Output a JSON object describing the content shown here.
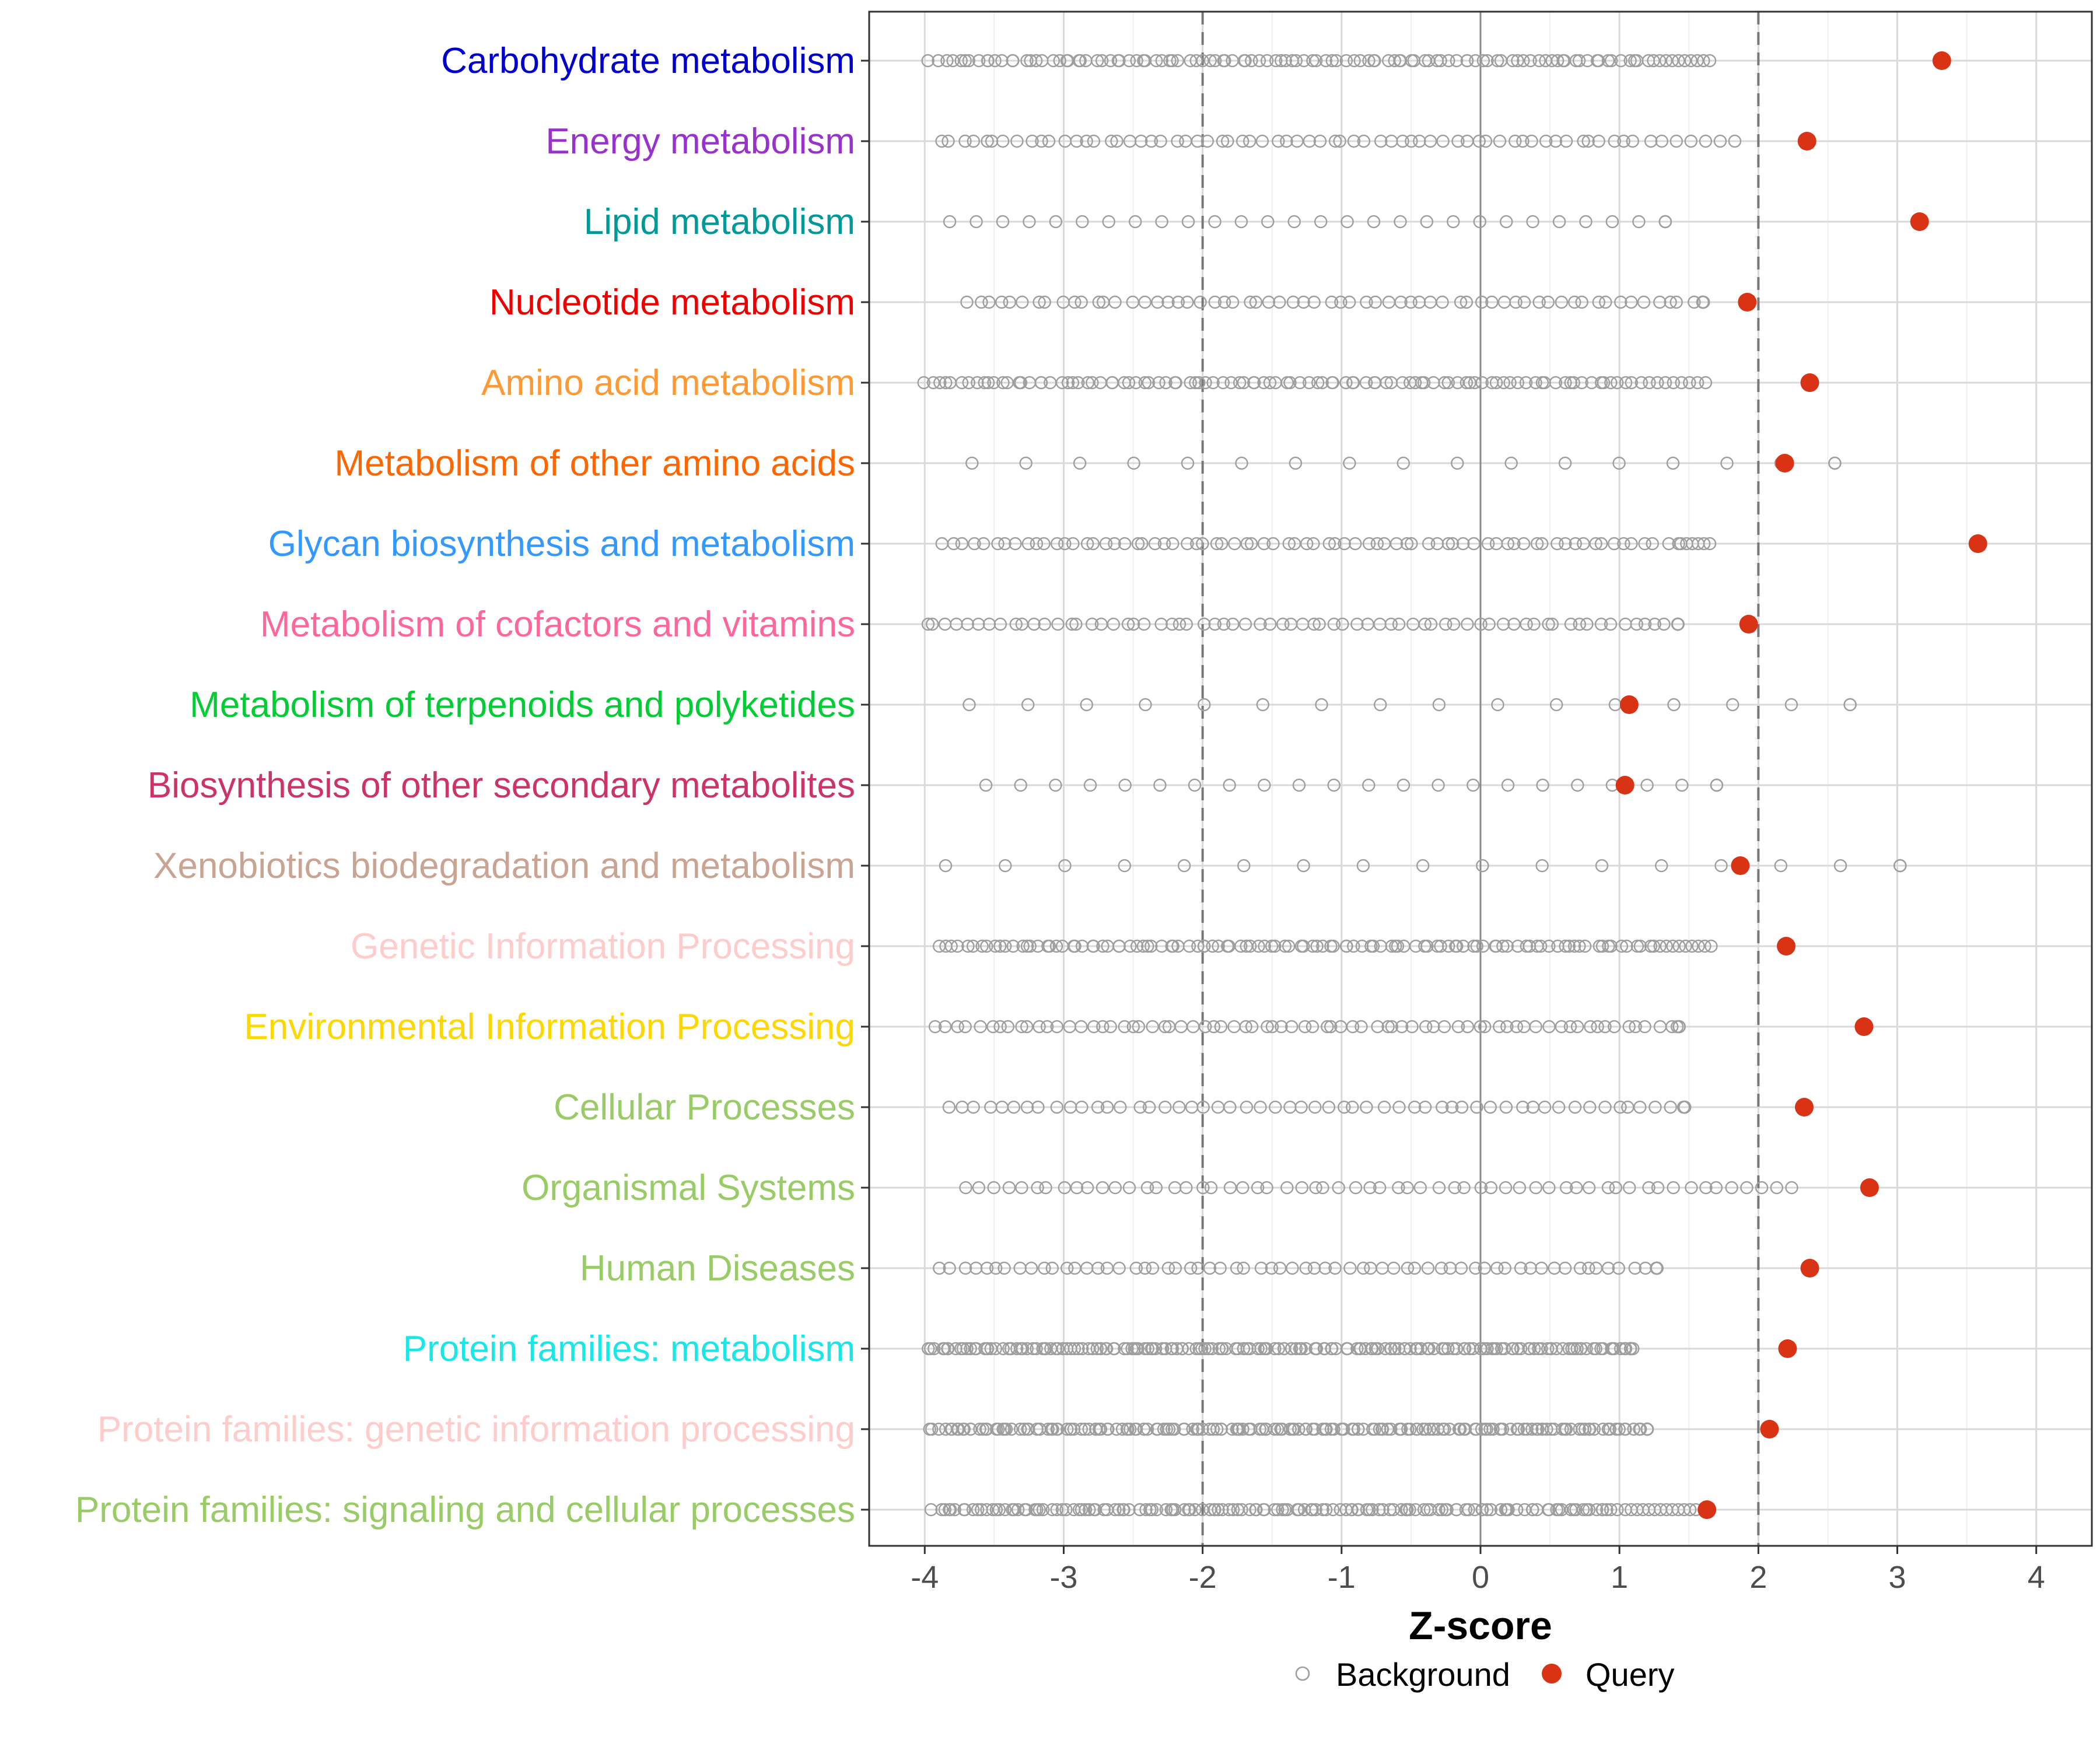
{
  "chart_data": {
    "type": "scatter",
    "title": "",
    "xlabel": "Z-score",
    "ylabel": "",
    "xlim": [
      -4.4,
      4.4
    ],
    "xticks": [
      -4,
      -3,
      -2,
      -1,
      0,
      1,
      2,
      3,
      4
    ],
    "xtick_labels": [
      "-4",
      "-3",
      "-2",
      "-1",
      "0",
      "1",
      "2",
      "3",
      "4"
    ],
    "threshold_lines": [
      -2,
      2
    ],
    "zero_line": 0,
    "grid": true,
    "legend": {
      "placement": "bottom",
      "entries": [
        {
          "label": "Background",
          "marker": "open-circle",
          "color": "#9e9e9e"
        },
        {
          "label": "Query",
          "marker": "filled-circle",
          "color": "#d93316"
        }
      ]
    },
    "categories": [
      {
        "label": "Carbohydrate metabolism",
        "color": "#0000cd",
        "query": 3.32,
        "bg_min": -3.95,
        "bg_max": 1.65,
        "bg_n": 120,
        "bg_core": 1.2
      },
      {
        "label": "Energy metabolism",
        "color": "#9932cc",
        "query": 2.35,
        "bg_min": -3.9,
        "bg_max": 1.83,
        "bg_n": 70,
        "bg_core": 1.2
      },
      {
        "label": "Lipid metabolism",
        "color": "#009999",
        "query": 3.16,
        "bg_min": -3.82,
        "bg_max": 1.33,
        "bg_n": 30,
        "bg_core": 1.33
      },
      {
        "label": "Nucleotide metabolism",
        "color": "#ee0000",
        "query": 1.92,
        "bg_min": -3.7,
        "bg_max": 1.6,
        "bg_n": 70,
        "bg_core": 1.6
      },
      {
        "label": "Amino acid metabolism",
        "color": "#ff9933",
        "query": 2.37,
        "bg_min": -4.0,
        "bg_max": 1.62,
        "bg_n": 110,
        "bg_core": 1.1
      },
      {
        "label": "Metabolism of other amino acids",
        "color": "#ff6600",
        "query": 2.19,
        "bg_min": -3.66,
        "bg_max": 2.55,
        "bg_n": 18,
        "bg_core": 2.55
      },
      {
        "label": "Glycan biosynthesis and metabolism",
        "color": "#3399ff",
        "query": 3.58,
        "bg_min": -3.85,
        "bg_max": 1.65,
        "bg_n": 80,
        "bg_core": 1.4
      },
      {
        "label": "Metabolism of cofactors and vitamins",
        "color": "#ff6699",
        "query": 1.93,
        "bg_min": -4.0,
        "bg_max": 1.42,
        "bg_n": 75,
        "bg_core": 1.42
      },
      {
        "label": "Metabolism of terpenoids and polyketides",
        "color": "#00cc33",
        "query": 1.07,
        "bg_min": -3.68,
        "bg_max": 2.66,
        "bg_n": 17,
        "bg_core": 2.66
      },
      {
        "label": "Biosynthesis of other secondary metabolites",
        "color": "#cc3366",
        "query": 1.04,
        "bg_min": -3.56,
        "bg_max": 1.7,
        "bg_n": 24,
        "bg_core": 1.7
      },
      {
        "label": "Xenobiotics biodegradation and metabolism",
        "color": "#c9a493",
        "query": 1.87,
        "bg_min": -3.85,
        "bg_max": 3.02,
        "bg_n": 19,
        "bg_core": 3.02
      },
      {
        "label": "Genetic Information Processing",
        "color": "#ffcccc",
        "query": 2.2,
        "bg_min": -3.88,
        "bg_max": 1.66,
        "bg_n": 120,
        "bg_core": 1.2
      },
      {
        "label": "Environmental Information Processing",
        "color": "#ffd700",
        "query": 2.76,
        "bg_min": -3.9,
        "bg_max": 1.43,
        "bg_n": 80,
        "bg_core": 1.43
      },
      {
        "label": "Cellular Processes",
        "color": "#99cc66",
        "query": 2.33,
        "bg_min": -3.85,
        "bg_max": 1.47,
        "bg_n": 60,
        "bg_core": 1.47
      },
      {
        "label": "Organismal Systems",
        "color": "#99cc66",
        "query": 2.8,
        "bg_min": -3.72,
        "bg_max": 2.24,
        "bg_n": 60,
        "bg_core": 1.7
      },
      {
        "label": "Human Diseases",
        "color": "#99cc66",
        "query": 2.37,
        "bg_min": -3.9,
        "bg_max": 1.27,
        "bg_n": 70,
        "bg_core": 1.27
      },
      {
        "label": "Protein families: metabolism",
        "color": "#19e6e6",
        "query": 2.21,
        "bg_min": -3.97,
        "bg_max": 1.08,
        "bg_n": 200,
        "bg_core": 1.08
      },
      {
        "label": "Protein families: genetic information processing",
        "color": "#ffcccc",
        "query": 2.08,
        "bg_min": -3.95,
        "bg_max": 1.2,
        "bg_n": 200,
        "bg_core": 1.2
      },
      {
        "label": "Protein families: signaling and cellular processes",
        "color": "#99cc66",
        "query": 1.63,
        "bg_min": -3.93,
        "bg_max": 1.55,
        "bg_n": 160,
        "bg_core": 1.0
      }
    ]
  }
}
